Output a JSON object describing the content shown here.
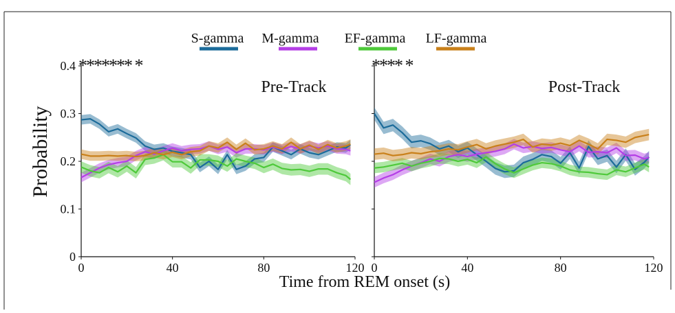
{
  "chart_data": {
    "type": "line",
    "xlabel": "Time from REM onset (s)",
    "ylabel": "Probability",
    "ylim": [
      0,
      0.4
    ],
    "xlim": [
      0,
      120
    ],
    "x_ticks": [
      "0",
      "40",
      "80",
      "120"
    ],
    "y_ticks": [
      "0",
      "0.1",
      "0.2",
      "0.3",
      "0.4"
    ],
    "legend_position": "top",
    "grid": false,
    "x": [
      0,
      4,
      8,
      12,
      16,
      20,
      24,
      28,
      32,
      36,
      40,
      44,
      48,
      52,
      56,
      60,
      64,
      68,
      72,
      76,
      80,
      84,
      88,
      92,
      96,
      100,
      104,
      108,
      112,
      116,
      118
    ],
    "series_legend": [
      {
        "name": "S-gamma",
        "color": "#1b6b9a"
      },
      {
        "name": "M-gamma",
        "color": "#b43ee6"
      },
      {
        "name": "EF-gamma",
        "color": "#4ec93a"
      },
      {
        "name": "LF-gamma",
        "color": "#c9801a"
      }
    ],
    "panels": [
      {
        "title": "Pre-Track",
        "significance_markers": "*******   *",
        "series": [
          {
            "name": "S-gamma",
            "color": "#1b6b9a",
            "band": 0.01,
            "values": [
              0.287,
              0.289,
              0.278,
              0.262,
              0.268,
              0.258,
              0.249,
              0.232,
              0.225,
              0.228,
              0.221,
              0.218,
              0.214,
              0.187,
              0.2,
              0.183,
              0.214,
              0.183,
              0.19,
              0.205,
              0.208,
              0.23,
              0.222,
              0.214,
              0.226,
              0.218,
              0.214,
              0.222,
              0.23,
              0.228,
              0.235
            ]
          },
          {
            "name": "M-gamma",
            "color": "#b43ee6",
            "band": 0.01,
            "values": [
              0.166,
              0.176,
              0.186,
              0.193,
              0.197,
              0.2,
              0.212,
              0.22,
              0.215,
              0.222,
              0.228,
              0.222,
              0.225,
              0.226,
              0.232,
              0.225,
              0.23,
              0.218,
              0.226,
              0.226,
              0.224,
              0.23,
              0.225,
              0.231,
              0.226,
              0.232,
              0.228,
              0.232,
              0.226,
              0.225,
              0.222
            ]
          },
          {
            "name": "EF-gamma",
            "color": "#4ec93a",
            "band": 0.012,
            "values": [
              0.188,
              0.18,
              0.176,
              0.187,
              0.178,
              0.19,
              0.176,
              0.204,
              0.207,
              0.214,
              0.199,
              0.199,
              0.186,
              0.203,
              0.203,
              0.2,
              0.19,
              0.205,
              0.2,
              0.196,
              0.187,
              0.194,
              0.185,
              0.182,
              0.183,
              0.179,
              0.184,
              0.184,
              0.176,
              0.17,
              0.162
            ]
          },
          {
            "name": "LF-gamma",
            "color": "#c9801a",
            "band": 0.01,
            "values": [
              0.215,
              0.211,
              0.211,
              0.212,
              0.211,
              0.212,
              0.21,
              0.212,
              0.218,
              0.214,
              0.219,
              0.214,
              0.22,
              0.222,
              0.232,
              0.228,
              0.24,
              0.225,
              0.238,
              0.224,
              0.226,
              0.232,
              0.226,
              0.24,
              0.226,
              0.234,
              0.225,
              0.235,
              0.228,
              0.232,
              0.236
            ]
          }
        ]
      },
      {
        "title": "Post-Track",
        "significance_markers": "****  *",
        "series": [
          {
            "name": "S-gamma",
            "color": "#1b6b9a",
            "band": 0.013,
            "values": [
              0.3,
              0.27,
              0.276,
              0.26,
              0.24,
              0.243,
              0.237,
              0.226,
              0.232,
              0.22,
              0.228,
              0.214,
              0.2,
              0.185,
              0.178,
              0.18,
              0.197,
              0.204,
              0.214,
              0.21,
              0.196,
              0.218,
              0.186,
              0.231,
              0.205,
              0.212,
              0.188,
              0.214,
              0.183,
              0.198,
              0.209
            ]
          },
          {
            "name": "M-gamma",
            "color": "#b43ee6",
            "band": 0.011,
            "values": [
              0.156,
              0.165,
              0.172,
              0.182,
              0.19,
              0.197,
              0.205,
              0.2,
              0.21,
              0.214,
              0.21,
              0.215,
              0.218,
              0.221,
              0.226,
              0.236,
              0.228,
              0.231,
              0.227,
              0.229,
              0.224,
              0.22,
              0.232,
              0.219,
              0.22,
              0.218,
              0.228,
              0.212,
              0.213,
              0.205,
              0.208
            ]
          },
          {
            "name": "EF-gamma",
            "color": "#4ec93a",
            "band": 0.011,
            "values": [
              0.186,
              0.188,
              0.192,
              0.196,
              0.19,
              0.196,
              0.2,
              0.206,
              0.205,
              0.2,
              0.204,
              0.197,
              0.209,
              0.195,
              0.184,
              0.176,
              0.184,
              0.192,
              0.197,
              0.195,
              0.19,
              0.182,
              0.178,
              0.177,
              0.174,
              0.172,
              0.182,
              0.178,
              0.186,
              0.194,
              0.188
            ]
          },
          {
            "name": "LF-gamma",
            "color": "#c9801a",
            "band": 0.012,
            "values": [
              0.215,
              0.217,
              0.212,
              0.214,
              0.218,
              0.216,
              0.22,
              0.222,
              0.226,
              0.224,
              0.23,
              0.235,
              0.226,
              0.232,
              0.236,
              0.24,
              0.246,
              0.23,
              0.236,
              0.234,
              0.238,
              0.233,
              0.244,
              0.236,
              0.226,
              0.246,
              0.244,
              0.24,
              0.25,
              0.254,
              0.256
            ]
          }
        ]
      }
    ]
  }
}
